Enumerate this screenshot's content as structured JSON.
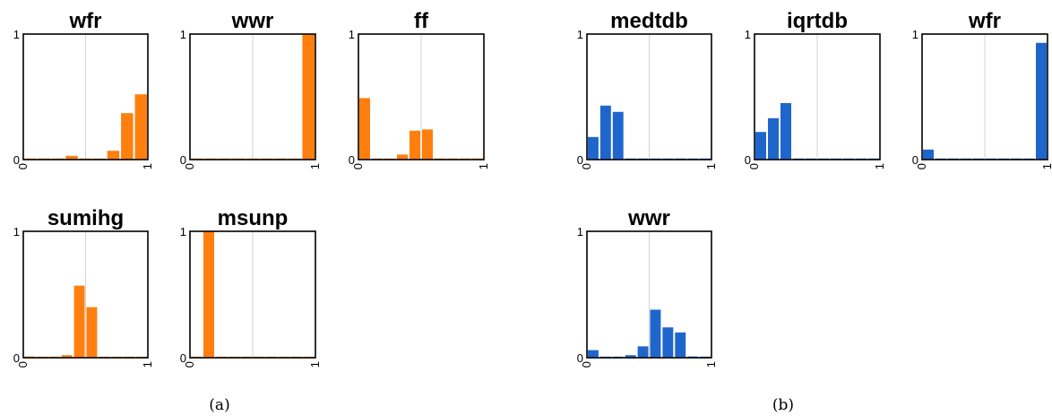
{
  "colors": {
    "panel_a": "#ff7f0e",
    "panel_b": "#1f66cc",
    "grid": "#c8c8c8",
    "axis": "#000000"
  },
  "captions": {
    "a": "(a)",
    "b": "(b)"
  },
  "chart_data": [
    {
      "type": "bar",
      "group": "a",
      "title": "wfr",
      "xlim": [
        0,
        1
      ],
      "ylim": [
        0,
        1
      ],
      "xticks": [
        "0",
        "1"
      ],
      "yticks": [
        "0",
        "1"
      ],
      "values": [
        0.0,
        0.0,
        0.0,
        0.03,
        0.0,
        0.0,
        0.07,
        0.37,
        0.52
      ]
    },
    {
      "type": "bar",
      "group": "a",
      "title": "wwr",
      "xlim": [
        0,
        1
      ],
      "ylim": [
        0,
        1
      ],
      "xticks": [
        "0",
        "1"
      ],
      "yticks": [
        "0",
        "1"
      ],
      "values": [
        0.0,
        0.0,
        0.0,
        0.0,
        0.0,
        0.0,
        0.0,
        0.0,
        1.0
      ]
    },
    {
      "type": "bar",
      "group": "a",
      "title": "ff",
      "xlim": [
        0,
        1
      ],
      "ylim": [
        0,
        1
      ],
      "xticks": [
        "0",
        "1"
      ],
      "yticks": [
        "0",
        "1"
      ],
      "values": [
        0.49,
        0.0,
        0.0,
        0.04,
        0.23,
        0.24,
        0.0,
        0.0,
        0.0,
        0.0
      ]
    },
    {
      "type": "bar",
      "group": "a",
      "title": "sumihg",
      "xlim": [
        0,
        1
      ],
      "ylim": [
        0,
        1
      ],
      "xticks": [
        "0",
        "1"
      ],
      "yticks": [
        "0",
        "1"
      ],
      "values": [
        0.01,
        0.0,
        0.0,
        0.02,
        0.57,
        0.4,
        0.0,
        0.0,
        0.0,
        0.0
      ]
    },
    {
      "type": "bar",
      "group": "a",
      "title": "msunp",
      "xlim": [
        0,
        1
      ],
      "ylim": [
        0,
        1
      ],
      "xticks": [
        "0",
        "1"
      ],
      "yticks": [
        "0",
        "1"
      ],
      "values": [
        0.0,
        1.0,
        0.0,
        0.0,
        0.0,
        0.0,
        0.0,
        0.0,
        0.0,
        0.0
      ]
    },
    {
      "type": "bar",
      "group": "b",
      "title": "medtdb",
      "xlim": [
        0,
        1
      ],
      "ylim": [
        0,
        1
      ],
      "xticks": [
        "0",
        "1"
      ],
      "yticks": [
        "0",
        "1"
      ],
      "values": [
        0.18,
        0.43,
        0.38,
        0.0,
        0.0,
        0.0,
        0.0,
        0.0,
        0.0,
        0.0
      ]
    },
    {
      "type": "bar",
      "group": "b",
      "title": "iqrtdb",
      "xlim": [
        0,
        1
      ],
      "ylim": [
        0,
        1
      ],
      "xticks": [
        "0",
        "1"
      ],
      "yticks": [
        "0",
        "1"
      ],
      "values": [
        0.22,
        0.33,
        0.45,
        0.0,
        0.0,
        0.0,
        0.0,
        0.0,
        0.0,
        0.0
      ]
    },
    {
      "type": "bar",
      "group": "b",
      "title": "wfr",
      "xlim": [
        0,
        1
      ],
      "ylim": [
        0,
        1
      ],
      "xticks": [
        "0",
        "1"
      ],
      "yticks": [
        "0",
        "1"
      ],
      "values": [
        0.08,
        0.0,
        0.0,
        0.0,
        0.0,
        0.0,
        0.0,
        0.0,
        0.0,
        0.93
      ]
    },
    {
      "type": "bar",
      "group": "b",
      "title": "wwr",
      "xlim": [
        0,
        1
      ],
      "ylim": [
        0,
        1
      ],
      "xticks": [
        "0",
        "1"
      ],
      "yticks": [
        "0",
        "1"
      ],
      "values": [
        0.06,
        0.0,
        0.0,
        0.02,
        0.09,
        0.38,
        0.24,
        0.2,
        0.01,
        0.0
      ]
    }
  ]
}
